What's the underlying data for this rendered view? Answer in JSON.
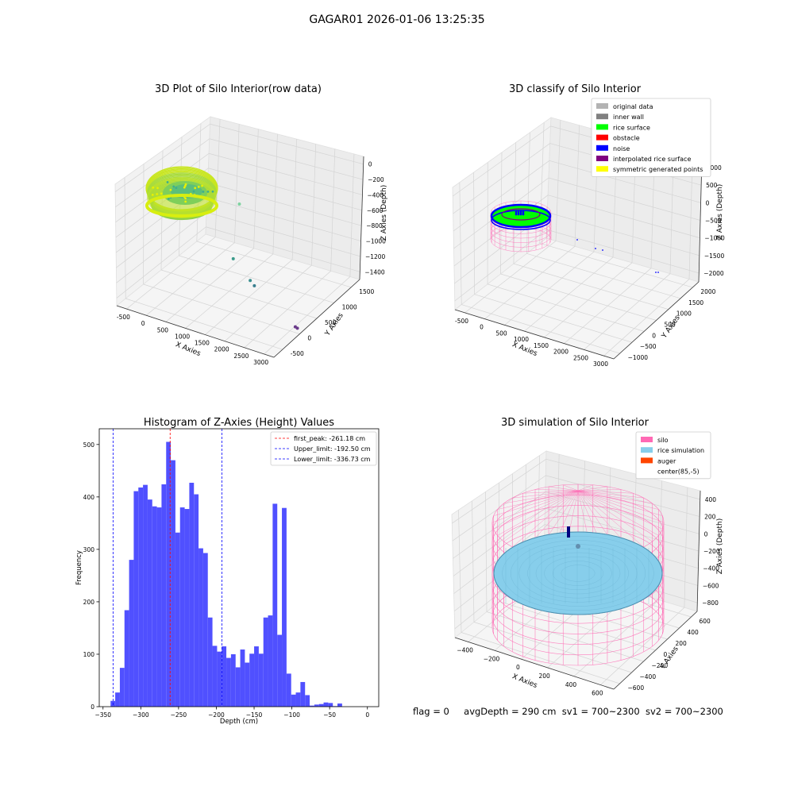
{
  "suptitle": "GAGAR01 2026-01-06 13:25:35",
  "status": {
    "flag": "flag = 0",
    "avg_depth": "avgDepth = 290 cm",
    "sv1": "sv1 = 700~2300",
    "sv2": "sv2 = 700~2300"
  },
  "chart_data": [
    {
      "id": "raw",
      "type": "scatter",
      "projection": "3d",
      "title": "3D Plot of Silo Interior(row data)",
      "xlabel": "X Axies",
      "ylabel": "Y Axies",
      "zlabel": "Z Axies (Depth)",
      "x_ticks": [
        "-500",
        "0",
        "500",
        "1000",
        "1500",
        "2000",
        "2500",
        "3000"
      ],
      "y_ticks": [
        "-500",
        "0",
        "500",
        "1000",
        "1500"
      ],
      "z_ticks": [
        "0",
        "−200",
        "−400",
        "−600",
        "−800",
        "−1000",
        "−1200",
        "−1400"
      ],
      "xlim": [
        -600,
        3200
      ],
      "ylim": [
        -700,
        1700
      ],
      "zlim": [
        -1450,
        50
      ],
      "colormap": "viridis",
      "main_cluster": {
        "x_center": 0,
        "y_center": 0,
        "radius": 600,
        "z_center": -250
      },
      "outliers": [
        {
          "x": 1200,
          "y": 600,
          "z": -350,
          "color": "#7fd3a0"
        },
        {
          "x": 1500,
          "y": 100,
          "z": -800,
          "color": "#3a9a8a"
        },
        {
          "x": 2000,
          "y": 0,
          "z": -950,
          "color": "#3a8f8f"
        },
        {
          "x": 2100,
          "y": 0,
          "z": -1000,
          "color": "#3a7f8f"
        },
        {
          "x": 3000,
          "y": 100,
          "z": -1400,
          "color": "#6a3a8a"
        },
        {
          "x": 3050,
          "y": 100,
          "z": -1410,
          "color": "#6a3a8a"
        }
      ]
    },
    {
      "id": "classify",
      "type": "scatter",
      "projection": "3d",
      "title": "3D classify of Silo Interior",
      "xlabel": "X Axies",
      "ylabel": "Y Axies",
      "zlabel": "Z Axies (Depth)",
      "x_ticks": [
        "-500",
        "0",
        "500",
        "1000",
        "1500",
        "2000",
        "2500",
        "3000"
      ],
      "y_ticks": [
        "−1000",
        "−500",
        "0",
        "500",
        "1000",
        "1500",
        "2000"
      ],
      "z_ticks": [
        "1000",
        "500",
        "0",
        "−500",
        "−1000",
        "−1500",
        "−2000"
      ],
      "legend": {
        "placement": "top-right",
        "items": [
          {
            "label": "original data",
            "color": "#b3b3b3"
          },
          {
            "label": "inner wall",
            "color": "#808080"
          },
          {
            "label": "rice surface",
            "color": "#00ff00"
          },
          {
            "label": "obstacle",
            "color": "#ff0000"
          },
          {
            "label": "noise",
            "color": "#0000ff"
          },
          {
            "label": "interpolated rice surface",
            "color": "#800080"
          },
          {
            "label": "symmetric generated points",
            "color": "#ffff00"
          }
        ]
      }
    },
    {
      "id": "hist",
      "type": "bar",
      "title": "Histogram of Z-Axies (Height) Values",
      "xlabel": "Depth (cm)",
      "ylabel": "Frequency",
      "xlim": [
        -355,
        15
      ],
      "ylim": [
        0,
        530
      ],
      "bar_color": "#5050ff",
      "x_ticks": [
        -350,
        -300,
        -250,
        -200,
        -150,
        -100,
        -50,
        0
      ],
      "y_ticks": [
        0,
        100,
        200,
        300,
        400,
        500
      ],
      "bin_start": -340,
      "bin_width": 6.13,
      "values": [
        11,
        27,
        74,
        184,
        280,
        411,
        418,
        423,
        395,
        382,
        380,
        424,
        505,
        470,
        332,
        380,
        377,
        427,
        405,
        302,
        293,
        170,
        116,
        105,
        115,
        93,
        100,
        75,
        109,
        84,
        101,
        115,
        101,
        170,
        174,
        387,
        137,
        379,
        63,
        23,
        27,
        47,
        22,
        2,
        4,
        5,
        8,
        7,
        1,
        6
      ],
      "vlines": [
        {
          "x": -261.18,
          "color": "#ff0000",
          "label": "first_peak: -261.18 cm"
        },
        {
          "x": -192.5,
          "color": "#0000ff",
          "label": "Upper_limit: -192.50 cm"
        },
        {
          "x": -336.73,
          "color": "#0000ff",
          "label": "Lower_limit: -336.73 cm"
        }
      ],
      "legend_placement": "top-right"
    },
    {
      "id": "sim",
      "type": "surface",
      "projection": "3d",
      "title": "3D simulation of Silo Interior",
      "xlabel": "X Axies",
      "ylabel": "Y Axies",
      "zlabel": "Z Axies (Depth)",
      "x_ticks": [
        "−400",
        "−200",
        "0",
        "200",
        "400",
        "600"
      ],
      "y_ticks": [
        "−600",
        "−400",
        "−200",
        "0",
        "200",
        "400",
        "600"
      ],
      "z_ticks": [
        "400",
        "200",
        "0",
        "−200",
        "−400",
        "−600",
        "−800"
      ],
      "legend": {
        "placement": "top-right",
        "items": [
          {
            "label": "silo",
            "color": "#ff69b4"
          },
          {
            "label": "rice simulation",
            "color": "#87ceeb"
          },
          {
            "label": "auger",
            "color": "#ff4500"
          },
          {
            "label": "center(85,-5)",
            "color": ""
          }
        ]
      }
    }
  ]
}
